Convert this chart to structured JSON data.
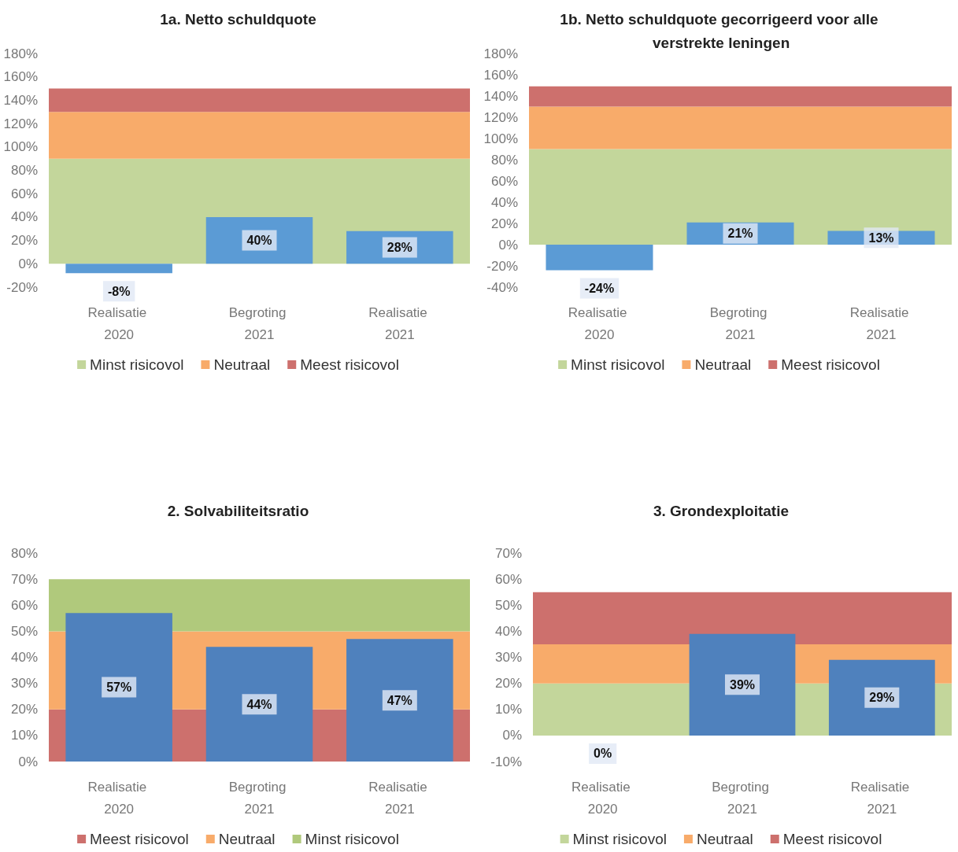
{
  "chart_data": [
    {
      "type": "bar",
      "title": "1a. Netto schuldquote",
      "categories": [
        "Realisatie 2020",
        "Begroting 2021",
        "Realisatie 2021"
      ],
      "series": [
        {
          "color": "#5b9bd5",
          "values": [
            -8,
            40,
            28
          ],
          "value_labels": [
            "-8%",
            "40%",
            "28%"
          ]
        }
      ],
      "ylim": [
        -20,
        180
      ],
      "yticks": [
        {
          "value": -20,
          "label": "-20%"
        },
        {
          "value": 0,
          "label": "0%"
        },
        {
          "value": 20,
          "label": "20%"
        },
        {
          "value": 40,
          "label": "40%"
        },
        {
          "value": 60,
          "label": "60%"
        },
        {
          "value": 80,
          "label": "80%"
        },
        {
          "value": 100,
          "label": "100%"
        },
        {
          "value": 120,
          "label": "120%"
        },
        {
          "value": 140,
          "label": "140%"
        },
        {
          "value": 160,
          "label": "160%"
        },
        {
          "value": 180,
          "label": "180%"
        }
      ],
      "bands": [
        {
          "axis": "y",
          "from": 0,
          "to": 90,
          "label": "Minst risicovol",
          "color": "#c3d69b"
        },
        {
          "axis": "y",
          "from": 90,
          "to": 130,
          "label": "Neutraal",
          "color": "#f8ab6a"
        },
        {
          "axis": "y",
          "from": 130,
          "to": 150,
          "label": "Meest risicovol",
          "color": "#cd706d"
        }
      ],
      "legend": "bottom",
      "grid": false
    },
    {
      "type": "bar",
      "title": "1b. Netto schuldquote gecorrigeerd voor alle verstrekte leningen",
      "categories": [
        "Realisatie 2020",
        "Begroting 2021",
        "Realisatie 2021"
      ],
      "series": [
        {
          "color": "#5b9bd5",
          "values": [
            -24,
            21,
            13
          ],
          "value_labels": [
            "-24%",
            "21%",
            "13%"
          ]
        }
      ],
      "ylim": [
        -40,
        180
      ],
      "yticks": [
        {
          "value": -40,
          "label": "-40%"
        },
        {
          "value": -20,
          "label": "-20%"
        },
        {
          "value": 0,
          "label": "0%"
        },
        {
          "value": 20,
          "label": "20%"
        },
        {
          "value": 40,
          "label": "40%"
        },
        {
          "value": 60,
          "label": "60%"
        },
        {
          "value": 80,
          "label": "80%"
        },
        {
          "value": 100,
          "label": "100%"
        },
        {
          "value": 120,
          "label": "120%"
        },
        {
          "value": 140,
          "label": "140%"
        },
        {
          "value": 160,
          "label": "160%"
        },
        {
          "value": 180,
          "label": "180%"
        }
      ],
      "bands": [
        {
          "axis": "y",
          "from": 0,
          "to": 90,
          "label": "Minst risicovol",
          "color": "#c3d69b"
        },
        {
          "axis": "y",
          "from": 90,
          "to": 130,
          "label": "Neutraal",
          "color": "#f8ab6a"
        },
        {
          "axis": "y",
          "from": 130,
          "to": 149,
          "label": "Meest risicovol",
          "color": "#cd706d"
        }
      ],
      "legend": "bottom",
      "grid": false
    },
    {
      "type": "bar",
      "title": "2. Solvabiliteitsratio",
      "categories": [
        "Realisatie 2020",
        "Begroting 2021",
        "Realisatie 2021"
      ],
      "series": [
        {
          "color": "#4f81bd",
          "values": [
            57,
            44,
            47
          ],
          "value_labels": [
            "57%",
            "44%",
            "47%"
          ]
        }
      ],
      "ylim": [
        0,
        80
      ],
      "yticks": [
        {
          "value": 0,
          "label": "0%"
        },
        {
          "value": 10,
          "label": "10%"
        },
        {
          "value": 20,
          "label": "20%"
        },
        {
          "value": 30,
          "label": "30%"
        },
        {
          "value": 40,
          "label": "40%"
        },
        {
          "value": 50,
          "label": "50%"
        },
        {
          "value": 60,
          "label": "60%"
        },
        {
          "value": 70,
          "label": "70%"
        },
        {
          "value": 80,
          "label": "80%"
        }
      ],
      "bands": [
        {
          "axis": "y",
          "from": 0,
          "to": 20,
          "label": "Meest risicovol",
          "color": "#cd706d"
        },
        {
          "axis": "y",
          "from": 20,
          "to": 50,
          "label": "Neutraal",
          "color": "#f8ab6a"
        },
        {
          "axis": "y",
          "from": 50,
          "to": 70,
          "label": "Minst risicovol",
          "color": "#b0c97c"
        }
      ],
      "legend": "bottom",
      "grid": false
    },
    {
      "type": "bar",
      "title": "3. Grondexploitatie",
      "categories": [
        "Realisatie 2020",
        "Begroting 2021",
        "Realisatie 2021"
      ],
      "series": [
        {
          "color": "#4f81bd",
          "values": [
            0,
            39,
            29
          ],
          "value_labels": [
            "0%",
            "39%",
            "29%"
          ]
        }
      ],
      "ylim": [
        -10,
        70
      ],
      "yticks": [
        {
          "value": -10,
          "label": "-10%"
        },
        {
          "value": 0,
          "label": "0%"
        },
        {
          "value": 10,
          "label": "10%"
        },
        {
          "value": 20,
          "label": "20%"
        },
        {
          "value": 30,
          "label": "30%"
        },
        {
          "value": 40,
          "label": "40%"
        },
        {
          "value": 50,
          "label": "50%"
        },
        {
          "value": 60,
          "label": "60%"
        },
        {
          "value": 70,
          "label": "70%"
        }
      ],
      "bands": [
        {
          "axis": "y",
          "from": 0,
          "to": 20,
          "label": "Minst risicovol",
          "color": "#c3d69b"
        },
        {
          "axis": "y",
          "from": 20,
          "to": 35,
          "label": "Neutraal",
          "color": "#f8ab6a"
        },
        {
          "axis": "y",
          "from": 35,
          "to": 55,
          "label": "Meest risicovol",
          "color": "#cd706d"
        }
      ],
      "legend": "bottom",
      "grid": false
    }
  ]
}
